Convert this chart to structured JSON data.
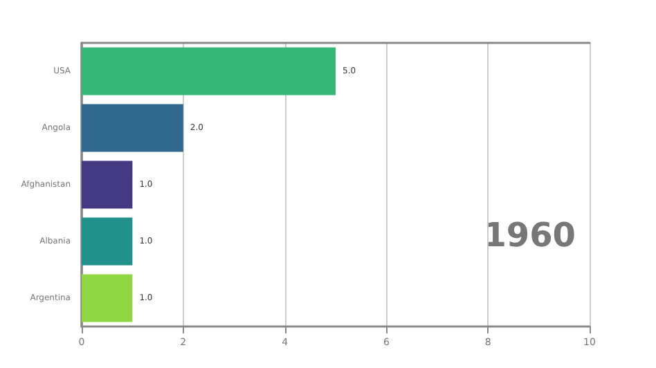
{
  "chart_data": {
    "type": "bar",
    "orientation": "horizontal",
    "categories": [
      "USA",
      "Angola",
      "Afghanistan",
      "Albania",
      "Argentina"
    ],
    "values": [
      5,
      2,
      1,
      1,
      1
    ],
    "colors": [
      "#35b779",
      "#31688e",
      "#443983",
      "#21918c",
      "#90d743"
    ],
    "value_labels": [
      "5.0",
      "2.0",
      "1.0",
      "1.0",
      "1.0"
    ],
    "xlim": [
      0,
      10
    ],
    "xticks": [
      0,
      2,
      4,
      6,
      8,
      10
    ],
    "grid": "x",
    "annotations": [
      "1960"
    ]
  }
}
